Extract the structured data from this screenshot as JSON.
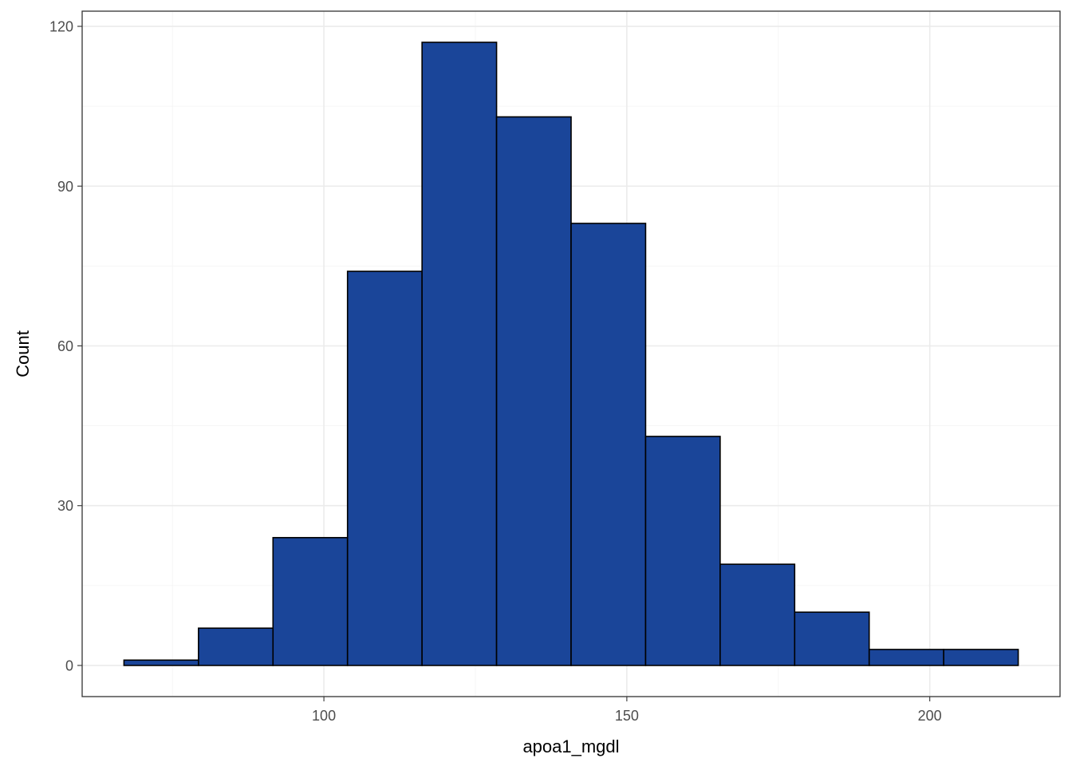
{
  "chart_data": {
    "type": "bar",
    "subtype": "histogram",
    "title": "",
    "xlabel": "apoa1_mgdl",
    "ylabel": "Count",
    "bin_width": 12.3,
    "bins": [
      {
        "x0": 67.0,
        "x1": 79.3,
        "count": 1
      },
      {
        "x0": 79.3,
        "x1": 91.6,
        "count": 7
      },
      {
        "x0": 91.6,
        "x1": 103.9,
        "count": 24
      },
      {
        "x0": 103.9,
        "x1": 116.2,
        "count": 74
      },
      {
        "x0": 116.2,
        "x1": 128.5,
        "count": 117
      },
      {
        "x0": 128.5,
        "x1": 140.8,
        "count": 103
      },
      {
        "x0": 140.8,
        "x1": 153.1,
        "count": 83
      },
      {
        "x0": 153.1,
        "x1": 165.4,
        "count": 43
      },
      {
        "x0": 165.4,
        "x1": 177.7,
        "count": 19
      },
      {
        "x0": 177.7,
        "x1": 190.0,
        "count": 10
      },
      {
        "x0": 190.0,
        "x1": 202.3,
        "count": 3
      },
      {
        "x0": 202.3,
        "x1": 214.6,
        "count": 3
      }
    ],
    "xlim": [
      60.1,
      221.5
    ],
    "ylim": [
      -5.85,
      122.85
    ],
    "x_ticks": [
      100,
      150,
      200
    ],
    "x_minor_ticks": [
      75,
      125,
      175
    ],
    "y_ticks": [
      0,
      30,
      60,
      90,
      120
    ],
    "y_minor_ticks": [
      15,
      45,
      75,
      105
    ],
    "grid": true,
    "legend": "none",
    "colors": {
      "bar_fill": "#1a4599",
      "bar_outline": "#000000",
      "background": "#ffffff",
      "panel_border": "#333333",
      "grid_major": "#ebebeb",
      "grid_minor": "#f3f3f3"
    }
  }
}
